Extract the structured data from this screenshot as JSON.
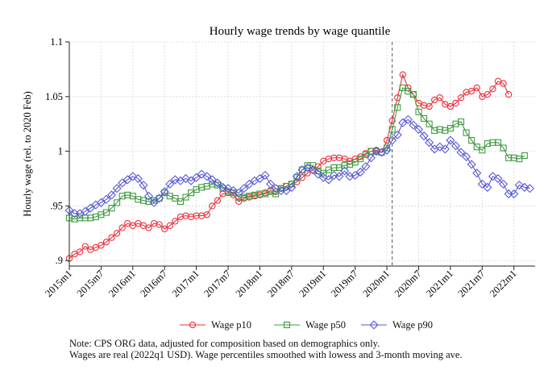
{
  "chart_data": {
    "type": "line",
    "title": "Hourly wage trends by wage quantile",
    "xlabel": "",
    "ylabel": "Hourly wage (rel. to 2020 Feb)",
    "ylim": [
      0.895,
      1.1
    ],
    "yticks": [
      0.9,
      0.95,
      1.0,
      1.05,
      1.1
    ],
    "ytick_labels": [
      ".9",
      ".95",
      "1",
      "1.05",
      "1.1"
    ],
    "xticks": [
      "2015m1",
      "2015m7",
      "2016m1",
      "2016m7",
      "2017m1",
      "2017m7",
      "2018m1",
      "2018m7",
      "2019m1",
      "2019m7",
      "2020m1",
      "2020m7",
      "2021m1",
      "2021m7",
      "2022m1"
    ],
    "x_start": "2015m1",
    "grid": true,
    "reference_line": "2020m2",
    "legend_position": "bottom",
    "series": [
      {
        "name": "Wage p10",
        "color": "#e8303a",
        "marker": "circle",
        "values": [
          0.902,
          0.906,
          0.908,
          0.913,
          0.91,
          0.912,
          0.914,
          0.917,
          0.921,
          0.925,
          0.93,
          0.934,
          0.932,
          0.934,
          0.932,
          0.93,
          0.934,
          0.933,
          0.929,
          0.932,
          0.936,
          0.94,
          0.941,
          0.94,
          0.941,
          0.941,
          0.942,
          0.95,
          0.955,
          0.961,
          0.962,
          0.96,
          0.954,
          0.957,
          0.958,
          0.959,
          0.96,
          0.962,
          0.964,
          0.963,
          0.966,
          0.968,
          0.97,
          0.972,
          0.976,
          0.98,
          0.983,
          0.986,
          0.991,
          0.993,
          0.994,
          0.994,
          0.993,
          0.991,
          0.993,
          0.995,
          0.998,
          1.0,
          1.001,
          0.999,
          1.01,
          1.028,
          1.049,
          1.07,
          1.058,
          1.052,
          1.044,
          1.042,
          1.041,
          1.047,
          1.049,
          1.043,
          1.041,
          1.044,
          1.049,
          1.054,
          1.055,
          1.058,
          1.05,
          1.052,
          1.057,
          1.064,
          1.062,
          1.052
        ]
      },
      {
        "name": "Wage p50",
        "color": "#3f9b3f",
        "marker": "square",
        "values": [
          0.939,
          0.938,
          0.939,
          0.939,
          0.939,
          0.94,
          0.942,
          0.944,
          0.948,
          0.953,
          0.959,
          0.96,
          0.959,
          0.956,
          0.955,
          0.954,
          0.955,
          0.957,
          0.962,
          0.959,
          0.957,
          0.954,
          0.958,
          0.962,
          0.965,
          0.967,
          0.968,
          0.97,
          0.969,
          0.966,
          0.963,
          0.962,
          0.958,
          0.958,
          0.959,
          0.96,
          0.961,
          0.961,
          0.963,
          0.961,
          0.966,
          0.968,
          0.97,
          0.976,
          0.983,
          0.987,
          0.987,
          0.982,
          0.98,
          0.983,
          0.985,
          0.985,
          0.987,
          0.988,
          0.99,
          0.993,
          0.997,
          1.0,
          1.0,
          0.999,
          1.003,
          1.02,
          1.04,
          1.058,
          1.055,
          1.052,
          1.036,
          1.03,
          1.025,
          1.019,
          1.02,
          1.019,
          1.021,
          1.025,
          1.027,
          1.017,
          1.01,
          1.004,
          1.001,
          1.007,
          1.008,
          1.008,
          1.003,
          0.994,
          0.994,
          0.993,
          0.996
        ]
      },
      {
        "name": "Wage p90",
        "color": "#5a5ad6",
        "marker": "diamond",
        "values": [
          0.946,
          0.943,
          0.943,
          0.945,
          0.948,
          0.951,
          0.953,
          0.956,
          0.96,
          0.966,
          0.971,
          0.974,
          0.977,
          0.975,
          0.969,
          0.959,
          0.953,
          0.957,
          0.963,
          0.97,
          0.974,
          0.973,
          0.975,
          0.973,
          0.976,
          0.979,
          0.977,
          0.974,
          0.971,
          0.967,
          0.966,
          0.964,
          0.962,
          0.966,
          0.97,
          0.973,
          0.975,
          0.978,
          0.97,
          0.966,
          0.964,
          0.964,
          0.967,
          0.977,
          0.983,
          0.985,
          0.983,
          0.979,
          0.976,
          0.974,
          0.978,
          0.977,
          0.982,
          0.977,
          0.978,
          0.981,
          0.986,
          0.994,
          1.0,
          0.999,
          1.001,
          1.01,
          1.015,
          1.026,
          1.029,
          1.024,
          1.02,
          1.014,
          1.008,
          1.002,
          1.004,
          1.002,
          1.01,
          1.005,
          0.999,
          0.995,
          0.988,
          0.98,
          0.97,
          0.967,
          0.977,
          0.975,
          0.97,
          0.961,
          0.961,
          0.969,
          0.967,
          0.966
        ]
      }
    ]
  },
  "notes": [
    "Note: CPS ORG data, adjusted for composition based on demographics only.",
    "Wages are real (2022q1 USD). Wage percentiles smoothed with lowess and 3-month moving ave."
  ]
}
